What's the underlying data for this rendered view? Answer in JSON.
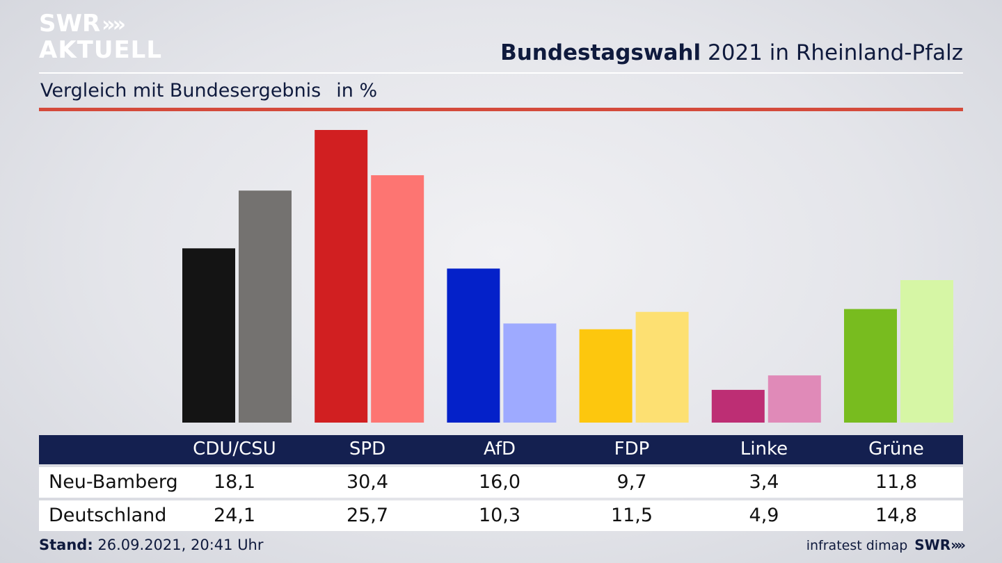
{
  "header": {
    "logo_line1": "SWR",
    "logo_line2": "AKTUELL",
    "logo_chevrons": "»",
    "title_bold": "Bundestagswahl",
    "title_rest": "2021 in Rheinland-Pfalz",
    "subtitle": "Vergleich mit Bundesergebnis",
    "unit": "in %"
  },
  "chart_data": {
    "type": "bar",
    "categories": [
      "CDU/CSU",
      "SPD",
      "AfD",
      "FDP",
      "Linke",
      "Grüne"
    ],
    "series": [
      {
        "name": "Neu-Bamberg",
        "values": [
          18.1,
          30.4,
          16.0,
          9.7,
          3.4,
          11.8
        ]
      },
      {
        "name": "Deutschland",
        "values": [
          24.1,
          25.7,
          10.3,
          11.5,
          4.9,
          14.8
        ]
      }
    ],
    "colors_primary": [
      "#141414",
      "#d11f21",
      "#0421c9",
      "#fdc70e",
      "#bd2e74",
      "#78bc1f"
    ],
    "colors_secondary": [
      "#747270",
      "#fd7572",
      "#9eaaff",
      "#fde072",
      "#e08ab8",
      "#d6f6a5"
    ],
    "ylim": [
      0,
      30.4
    ]
  },
  "table": {
    "headers": [
      "CDU/CSU",
      "SPD",
      "AfD",
      "FDP",
      "Linke",
      "Grüne"
    ],
    "rows": [
      {
        "label": "Neu-Bamberg",
        "values": [
          "18,1",
          "30,4",
          "16,0",
          "9,7",
          "3,4",
          "11,8"
        ]
      },
      {
        "label": "Deutschland",
        "values": [
          "24,1",
          "25,7",
          "10,3",
          "11,5",
          "4,9",
          "14,8"
        ]
      }
    ]
  },
  "footer": {
    "stand_label": "Stand:",
    "stand_value": "26.09.2021, 20:41 Uhr",
    "source": "infratest dimap",
    "brand": "SWR",
    "brand_chevrons": "»"
  },
  "colors": {
    "header_bar": "#142050",
    "accent_rule": "#d44a3b"
  }
}
